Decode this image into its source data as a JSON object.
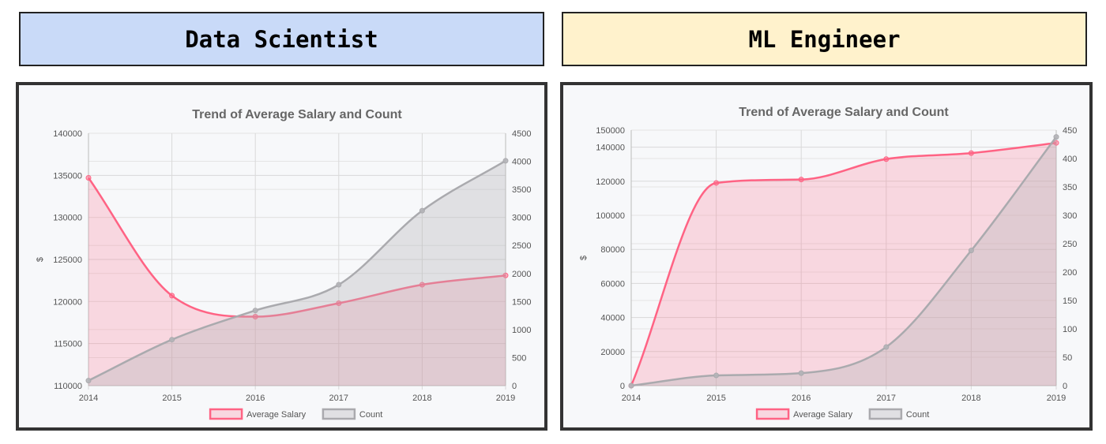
{
  "headers": [
    {
      "label": "Data Scientist",
      "color": "#c9daf8"
    },
    {
      "label": "ML Engineer",
      "color": "#fff2cc"
    }
  ],
  "chart_data": [
    {
      "type": "line",
      "title": "Trend of Average Salary and Count",
      "ylabel": "$",
      "x": [
        "2014",
        "2015",
        "2016",
        "2017",
        "2018",
        "2019"
      ],
      "y_left": {
        "min": 110000,
        "max": 140000,
        "step": 5000,
        "ticks": [
          "110000",
          "115000",
          "120000",
          "125000",
          "130000",
          "135000",
          "140000"
        ]
      },
      "y_right": {
        "min": 0,
        "max": 4500,
        "step": 500,
        "ticks": [
          "0",
          "500",
          "1000",
          "1500",
          "2000",
          "2500",
          "3000",
          "3500",
          "4000",
          "4500"
        ]
      },
      "series": [
        {
          "name": "Average Salary",
          "axis": "left",
          "color": "#ff6384",
          "values": [
            134700,
            120700,
            118200,
            119800,
            122000,
            123100
          ]
        },
        {
          "name": "Count",
          "axis": "right",
          "color": "#b4b4b8",
          "values": [
            90,
            820,
            1340,
            1800,
            3120,
            4010
          ]
        }
      ],
      "grid": true,
      "legend": "bottom"
    },
    {
      "type": "line",
      "title": "Trend of Average Salary and Count",
      "ylabel": "$",
      "x": [
        "2014",
        "2015",
        "2016",
        "2017",
        "2018",
        "2019"
      ],
      "y_left": {
        "min": 0,
        "max": 150000,
        "step": 20000,
        "ticks": [
          "0",
          "20000",
          "40000",
          "60000",
          "80000",
          "100000",
          "120000",
          "140000",
          "150000"
        ]
      },
      "y_right": {
        "min": 0,
        "max": 450,
        "step": 50,
        "ticks": [
          "0",
          "50",
          "100",
          "150",
          "200",
          "250",
          "300",
          "350",
          "400",
          "450"
        ]
      },
      "series": [
        {
          "name": "Average Salary",
          "axis": "left",
          "color": "#ff6384",
          "values": [
            0,
            119000,
            121000,
            133000,
            136500,
            142500
          ]
        },
        {
          "name": "Count",
          "axis": "right",
          "color": "#b4b4b8",
          "values": [
            0,
            18,
            22,
            68,
            238,
            438
          ]
        }
      ],
      "grid": true,
      "legend": "bottom"
    }
  ]
}
